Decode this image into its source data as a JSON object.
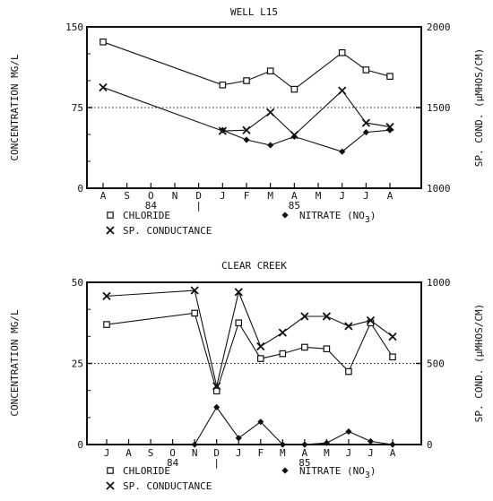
{
  "chart_data": [
    {
      "type": "line",
      "title": "WELL L15",
      "ylabel_left": "CONCENTRATION MG/L",
      "ylabel_right": "SP. COND. (µMHOS/CM)",
      "yticks_left": [
        "0",
        "75",
        "150"
      ],
      "yticks_right": [
        "1000",
        "1500",
        "2000"
      ],
      "ylim_left": [
        0,
        150
      ],
      "ylim_right": [
        1000,
        2000
      ],
      "months": [
        "A",
        "S",
        "O",
        "N",
        "D",
        "J",
        "F",
        "M",
        "A",
        "M",
        "J",
        "J",
        "A"
      ],
      "year_labels": [
        {
          "text": "84",
          "at": 2
        },
        {
          "text": "|",
          "at": 4
        },
        {
          "text": "85",
          "at": 8
        }
      ],
      "dotted_line": 75,
      "series": [
        {
          "name": "CHLORIDE",
          "marker": "square",
          "axis": "left",
          "x": [
            0,
            5,
            6,
            7,
            8,
            10,
            11,
            12
          ],
          "values": [
            136,
            96,
            100,
            109,
            92,
            126,
            110,
            104
          ]
        },
        {
          "name": "NITRATE (NO3)",
          "marker": "diamond",
          "axis": "left",
          "x": [
            5,
            6,
            7,
            8,
            10,
            11,
            12
          ],
          "values": [
            54,
            45,
            40,
            48,
            34,
            52,
            54
          ]
        },
        {
          "name": "SP. CONDUCTANCE",
          "marker": "x",
          "axis": "right",
          "x": [
            0,
            5,
            6,
            7,
            8,
            10,
            11,
            12
          ],
          "values": [
            1625,
            1355,
            1360,
            1470,
            1330,
            1605,
            1405,
            1380
          ]
        }
      ],
      "legend": [
        "CHLORIDE",
        "NITRATE (NO3)",
        "SP. CONDUCTANCE"
      ]
    },
    {
      "type": "line",
      "title": "CLEAR CREEK",
      "ylabel_left": "CONCENTRATION MG/L",
      "ylabel_right": "SP. COND. (µMHOS/CM)",
      "yticks_left": [
        "0",
        "25",
        "50"
      ],
      "yticks_right": [
        "0",
        "500",
        "1000"
      ],
      "ylim_left": [
        0,
        50
      ],
      "ylim_right": [
        0,
        1000
      ],
      "months": [
        "J",
        "A",
        "S",
        "O",
        "N",
        "D",
        "J",
        "F",
        "M",
        "A",
        "M",
        "J",
        "J",
        "A"
      ],
      "year_labels": [
        {
          "text": "84",
          "at": 3
        },
        {
          "text": "|",
          "at": 5
        },
        {
          "text": "85",
          "at": 9
        }
      ],
      "dotted_line": 25,
      "series": [
        {
          "name": "CHLORIDE",
          "marker": "square",
          "axis": "left",
          "x": [
            0,
            4,
            5,
            6,
            7,
            8,
            9,
            10,
            11,
            12,
            13
          ],
          "values": [
            37,
            40.5,
            16.5,
            37.5,
            26.5,
            28,
            30,
            29.5,
            22.5,
            37.5,
            27
          ]
        },
        {
          "name": "NITRATE (NO3)",
          "marker": "diamond",
          "axis": "left",
          "x": [
            4,
            5,
            6,
            7,
            8,
            9,
            10,
            11,
            12,
            13
          ],
          "values": [
            0,
            11.5,
            2,
            7,
            0,
            0,
            0.5,
            4,
            1,
            0
          ]
        },
        {
          "name": "SP. CONDUCTANCE",
          "marker": "x",
          "axis": "right",
          "x": [
            0,
            4,
            5,
            6,
            7,
            8,
            9,
            10,
            11,
            12,
            13
          ],
          "values": [
            915,
            950,
            360,
            940,
            605,
            690,
            790,
            790,
            730,
            765,
            665
          ]
        }
      ],
      "legend": [
        "CHLORIDE",
        "NITRATE (NO3)",
        "SP. CONDUCTANCE"
      ]
    }
  ]
}
